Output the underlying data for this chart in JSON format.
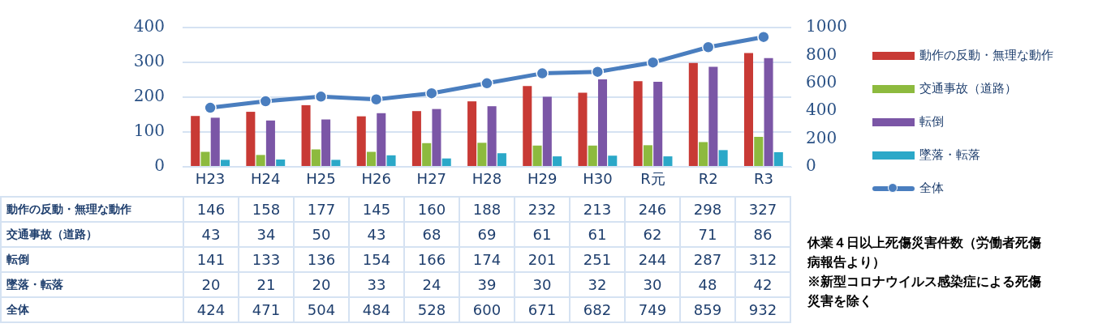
{
  "chart_data": {
    "type": "bar",
    "categories": [
      "H23",
      "H24",
      "H25",
      "H26",
      "H27",
      "H28",
      "H29",
      "H30",
      "R元",
      "R2",
      "R3"
    ],
    "series": [
      {
        "name": "動作の反動・無理な動作",
        "color": "#c83a35",
        "values": [
          146,
          158,
          177,
          145,
          160,
          188,
          232,
          213,
          246,
          298,
          327
        ]
      },
      {
        "name": "交通事故（道路）",
        "color": "#8dba3e",
        "values": [
          43,
          34,
          50,
          43,
          68,
          69,
          61,
          61,
          62,
          71,
          86
        ]
      },
      {
        "name": "転倒",
        "color": "#7b56a6",
        "values": [
          141,
          133,
          136,
          154,
          166,
          174,
          201,
          251,
          244,
          287,
          312
        ]
      },
      {
        "name": "墜落・転落",
        "color": "#2ba8c8",
        "values": [
          20,
          21,
          20,
          33,
          24,
          39,
          30,
          32,
          30,
          48,
          42
        ]
      },
      {
        "name": "全体",
        "type": "line",
        "axis": "y2",
        "color": "#4a7ebf",
        "marker": "circle",
        "values": [
          424,
          471,
          504,
          484,
          528,
          600,
          671,
          682,
          749,
          859,
          932
        ]
      }
    ],
    "ylim": [
      0,
      400
    ],
    "yticks": [
      0,
      100,
      200,
      300,
      400
    ],
    "y2lim": [
      0,
      1000
    ],
    "y2ticks": [
      0,
      200,
      400,
      600,
      800,
      1000
    ],
    "grid": "y",
    "legend": "right",
    "data_labels": true,
    "annotations": [
      "休業４日以上死傷災害件数（労働者死傷病報告より）",
      "※新型コロナウイルス感染症による死傷災害を除く"
    ]
  }
}
